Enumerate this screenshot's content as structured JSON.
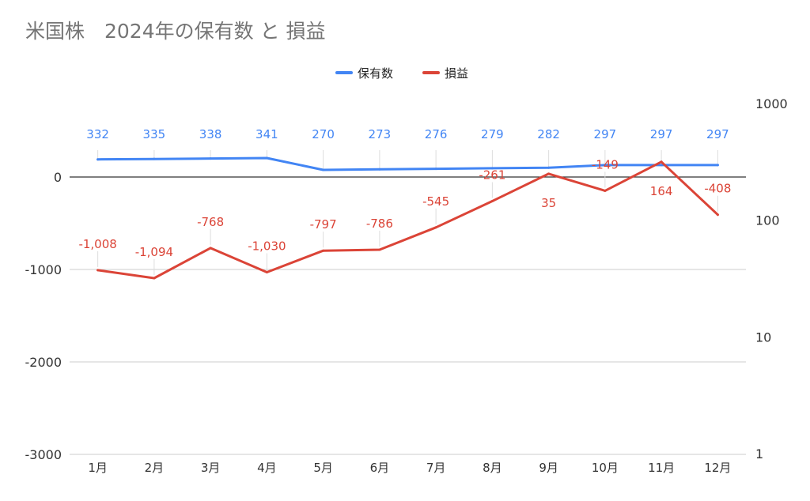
{
  "chart_data": {
    "type": "line",
    "title": "米国株　2024年の保有数 と 損益",
    "categories": [
      "1月",
      "2月",
      "3月",
      "4月",
      "5月",
      "6月",
      "7月",
      "8月",
      "9月",
      "10月",
      "11月",
      "12月"
    ],
    "series": [
      {
        "name": "保有数",
        "axis": "right",
        "color": "#4285f4",
        "values": [
          332,
          335,
          338,
          341,
          270,
          273,
          276,
          279,
          282,
          297,
          297,
          297
        ],
        "labels": [
          "332",
          "335",
          "338",
          "341",
          "270",
          "273",
          "276",
          "279",
          "282",
          "297",
          "297",
          "297"
        ]
      },
      {
        "name": "損益",
        "axis": "left",
        "color": "#db4437",
        "values": [
          -1008,
          -1094,
          -768,
          -1030,
          -797,
          -786,
          -545,
          -261,
          35,
          -149,
          164,
          -408
        ],
        "labels": [
          "-1,008",
          "-1,094",
          "-768",
          "-1,030",
          "-797",
          "-786",
          "-545",
          "-261",
          "35",
          "-149",
          "164",
          "-408"
        ]
      }
    ],
    "y_left": {
      "ylim": [
        -3000,
        500
      ],
      "ticks": [
        0,
        -1000,
        -2000,
        -3000
      ],
      "tick_labels": [
        "0",
        "-1000",
        "-2000",
        "-3000"
      ]
    },
    "y_right": {
      "scale": "log",
      "ylim": [
        1,
        1000
      ],
      "ticks": [
        1,
        10,
        100,
        1000
      ],
      "tick_labels": [
        "1",
        "10",
        "100",
        "1000"
      ]
    },
    "legend": "top",
    "grid": true
  }
}
